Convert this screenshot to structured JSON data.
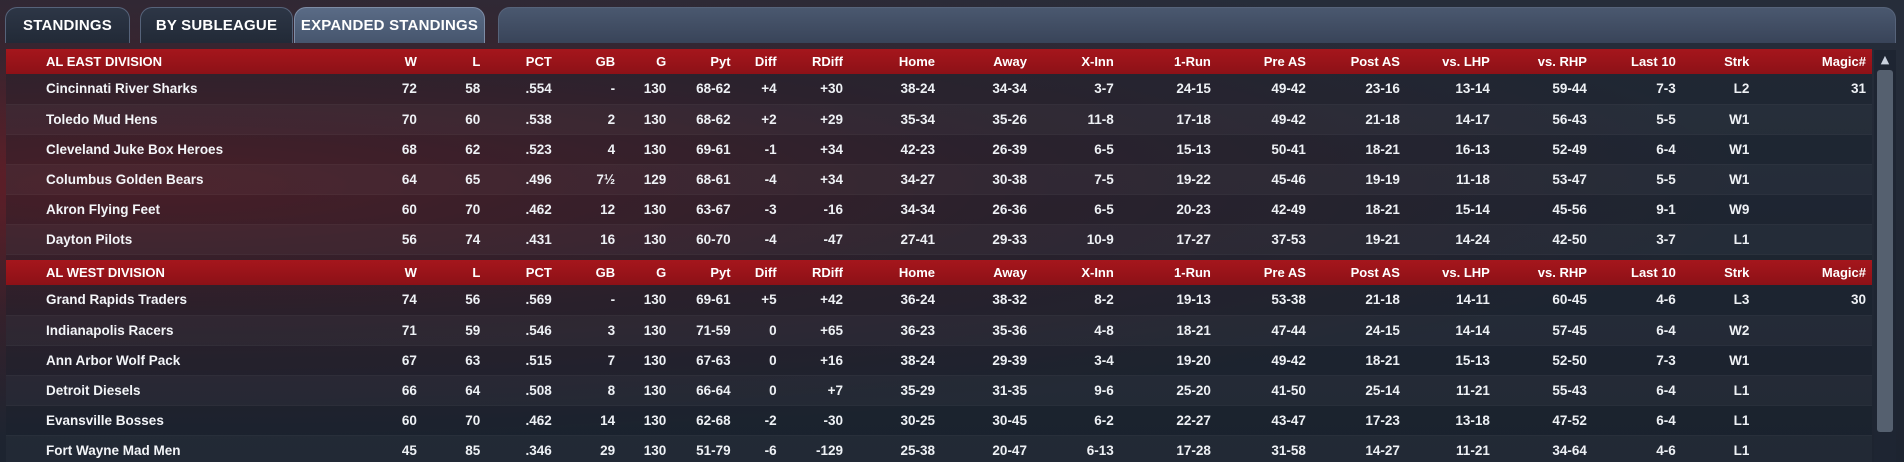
{
  "tabs": [
    {
      "label": "STANDINGS",
      "active": false
    },
    {
      "label": "BY SUBLEAGUE",
      "active": false
    },
    {
      "label": "EXPANDED STANDINGS",
      "active": true
    }
  ],
  "columns": [
    "W",
    "L",
    "PCT",
    "GB",
    "G",
    "Pyt",
    "Diff",
    "RDiff",
    "Home",
    "Away",
    "X-Inn",
    "1-Run",
    "Pre AS",
    "Post AS",
    "vs. LHP",
    "vs. RHP",
    "Last 10",
    "Strk",
    "Magic#"
  ],
  "colors": {
    "positive": "#4ee068",
    "negative": "#f06264",
    "header": "#a5161c"
  },
  "divisions": [
    {
      "name": "AL EAST DIVISION",
      "teams": [
        {
          "team": "Cincinnati River Sharks",
          "w": "72",
          "l": "58",
          "pct": ".554",
          "gb": "-",
          "g": "130",
          "pyt": "68-62",
          "diff": "+4",
          "rdiff": "+30",
          "home": "38-24",
          "away": "34-34",
          "xinn": "3-7",
          "onerun": "24-15",
          "preas": "49-42",
          "postas": "23-16",
          "vslhp": "13-14",
          "vsrhp": "59-44",
          "last10": "7-3",
          "strk": "L2",
          "magic": "31"
        },
        {
          "team": "Toledo  Mud Hens",
          "w": "70",
          "l": "60",
          "pct": ".538",
          "gb": "2",
          "g": "130",
          "pyt": "68-62",
          "diff": "+2",
          "rdiff": "+29",
          "home": "35-34",
          "away": "35-26",
          "xinn": "11-8",
          "onerun": "17-18",
          "preas": "49-42",
          "postas": "21-18",
          "vslhp": "14-17",
          "vsrhp": "56-43",
          "last10": "5-5",
          "strk": "W1",
          "magic": ""
        },
        {
          "team": "Cleveland Juke Box Heroes",
          "w": "68",
          "l": "62",
          "pct": ".523",
          "gb": "4",
          "g": "130",
          "pyt": "69-61",
          "diff": "-1",
          "rdiff": "+34",
          "home": "42-23",
          "away": "26-39",
          "xinn": "6-5",
          "onerun": "15-13",
          "preas": "50-41",
          "postas": "18-21",
          "vslhp": "16-13",
          "vsrhp": "52-49",
          "last10": "6-4",
          "strk": "W1",
          "magic": ""
        },
        {
          "team": "Columbus Golden Bears",
          "w": "64",
          "l": "65",
          "pct": ".496",
          "gb": "7½",
          "g": "129",
          "pyt": "68-61",
          "diff": "-4",
          "rdiff": "+34",
          "home": "34-27",
          "away": "30-38",
          "xinn": "7-5",
          "onerun": "19-22",
          "preas": "45-46",
          "postas": "19-19",
          "vslhp": "11-18",
          "vsrhp": "53-47",
          "last10": "5-5",
          "strk": "W1",
          "magic": ""
        },
        {
          "team": "Akron  Flying Feet",
          "w": "60",
          "l": "70",
          "pct": ".462",
          "gb": "12",
          "g": "130",
          "pyt": "63-67",
          "diff": "-3",
          "rdiff": "-16",
          "home": "34-34",
          "away": "26-36",
          "xinn": "6-5",
          "onerun": "20-23",
          "preas": "42-49",
          "postas": "18-21",
          "vslhp": "15-14",
          "vsrhp": "45-56",
          "last10": "9-1",
          "strk": "W9",
          "magic": ""
        },
        {
          "team": "Dayton Pilots",
          "w": "56",
          "l": "74",
          "pct": ".431",
          "gb": "16",
          "g": "130",
          "pyt": "60-70",
          "diff": "-4",
          "rdiff": "-47",
          "home": "27-41",
          "away": "29-33",
          "xinn": "10-9",
          "onerun": "17-27",
          "preas": "37-53",
          "postas": "19-21",
          "vslhp": "14-24",
          "vsrhp": "42-50",
          "last10": "3-7",
          "strk": "L1",
          "magic": ""
        }
      ]
    },
    {
      "name": "AL WEST DIVISION",
      "teams": [
        {
          "team": "Grand Rapids Traders",
          "w": "74",
          "l": "56",
          "pct": ".569",
          "gb": "-",
          "g": "130",
          "pyt": "69-61",
          "diff": "+5",
          "rdiff": "+42",
          "home": "36-24",
          "away": "38-32",
          "xinn": "8-2",
          "onerun": "19-13",
          "preas": "53-38",
          "postas": "21-18",
          "vslhp": "14-11",
          "vsrhp": "60-45",
          "last10": "4-6",
          "strk": "L3",
          "magic": "30"
        },
        {
          "team": "Indianapolis Racers",
          "w": "71",
          "l": "59",
          "pct": ".546",
          "gb": "3",
          "g": "130",
          "pyt": "71-59",
          "diff": "0",
          "rdiff": "+65",
          "home": "36-23",
          "away": "35-36",
          "xinn": "4-8",
          "onerun": "18-21",
          "preas": "47-44",
          "postas": "24-15",
          "vslhp": "14-14",
          "vsrhp": "57-45",
          "last10": "6-4",
          "strk": "W2",
          "magic": ""
        },
        {
          "team": "Ann Arbor Wolf Pack",
          "w": "67",
          "l": "63",
          "pct": ".515",
          "gb": "7",
          "g": "130",
          "pyt": "67-63",
          "diff": "0",
          "rdiff": "+16",
          "home": "38-24",
          "away": "29-39",
          "xinn": "3-4",
          "onerun": "19-20",
          "preas": "49-42",
          "postas": "18-21",
          "vslhp": "15-13",
          "vsrhp": "52-50",
          "last10": "7-3",
          "strk": "W1",
          "magic": ""
        },
        {
          "team": "Detroit Diesels",
          "w": "66",
          "l": "64",
          "pct": ".508",
          "gb": "8",
          "g": "130",
          "pyt": "66-64",
          "diff": "0",
          "rdiff": "+7",
          "home": "35-29",
          "away": "31-35",
          "xinn": "9-6",
          "onerun": "25-20",
          "preas": "41-50",
          "postas": "25-14",
          "vslhp": "11-21",
          "vsrhp": "55-43",
          "last10": "6-4",
          "strk": "L1",
          "magic": ""
        },
        {
          "team": "Evansville Bosses",
          "w": "60",
          "l": "70",
          "pct": ".462",
          "gb": "14",
          "g": "130",
          "pyt": "62-68",
          "diff": "-2",
          "rdiff": "-30",
          "home": "30-25",
          "away": "30-45",
          "xinn": "6-2",
          "onerun": "22-27",
          "preas": "43-47",
          "postas": "17-23",
          "vslhp": "13-18",
          "vsrhp": "47-52",
          "last10": "6-4",
          "strk": "L1",
          "magic": ""
        },
        {
          "team": "Fort Wayne Mad Men",
          "w": "45",
          "l": "85",
          "pct": ".346",
          "gb": "29",
          "g": "130",
          "pyt": "51-79",
          "diff": "-6",
          "rdiff": "-129",
          "home": "25-38",
          "away": "20-47",
          "xinn": "6-13",
          "onerun": "17-28",
          "preas": "31-58",
          "postas": "14-27",
          "vslhp": "11-21",
          "vsrhp": "34-64",
          "last10": "4-6",
          "strk": "L1",
          "magic": ""
        }
      ]
    }
  ],
  "scrollbar": {
    "up_icon": "triangle-up-icon"
  }
}
